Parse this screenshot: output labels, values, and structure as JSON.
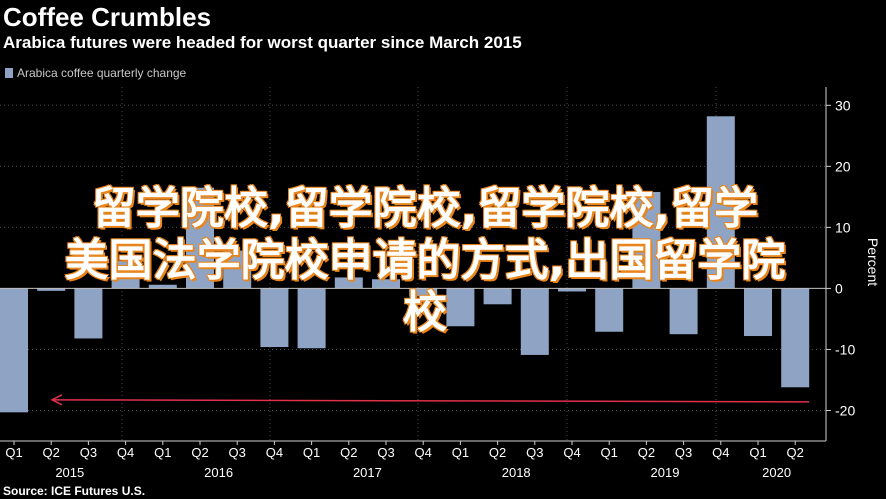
{
  "header": {
    "title": "Coffee Crumbles",
    "subtitle": "Arabica futures were headed for worst quarter since March 2015"
  },
  "legend": {
    "label": "Arabica coffee quarterly change"
  },
  "source": "Source: ICE Futures U.S.",
  "overlay": {
    "line1": "留学院校,留学院校,留学院校,留学",
    "line2": "美国法学院校申请的方式,出国留学院",
    "line3": "校"
  },
  "colors": {
    "background": "#000000",
    "bar": "#8fa4c4",
    "grid": "#4a4a4a",
    "arrow": "#e0304a",
    "text": "#ffffff"
  },
  "chart_data": {
    "type": "bar",
    "title": "Coffee Crumbles",
    "subtitle": "Arabica futures were headed for worst quarter since March 2015",
    "ylabel": "Percent",
    "ylim": [
      -25,
      33
    ],
    "yticks": [
      30,
      20,
      10,
      0,
      -10,
      -20
    ],
    "ytick_labels": [
      "30",
      "20",
      "10",
      "0",
      "-10",
      "-20"
    ],
    "grid": true,
    "legend_position": "top-left",
    "categories": [
      "Q1",
      "Q2",
      "Q3",
      "Q4",
      "Q1",
      "Q2",
      "Q3",
      "Q4",
      "Q1",
      "Q2",
      "Q3",
      "Q4",
      "Q1",
      "Q2",
      "Q3",
      "Q4",
      "Q1",
      "Q2",
      "Q3",
      "Q4",
      "Q1",
      "Q2"
    ],
    "years": [
      {
        "label": "2015",
        "start": 0,
        "end": 3
      },
      {
        "label": "2016",
        "start": 4,
        "end": 7
      },
      {
        "label": "2017",
        "start": 8,
        "end": 11
      },
      {
        "label": "2018",
        "start": 12,
        "end": 15
      },
      {
        "label": "2019",
        "start": 16,
        "end": 19
      },
      {
        "label": "2020",
        "start": 20,
        "end": 21
      }
    ],
    "series": [
      {
        "name": "Arabica coffee quarterly change",
        "values": [
          -20.3,
          -0.4,
          -8.2,
          4.5,
          0.6,
          16.5,
          6.2,
          -9.6,
          -9.8,
          1.8,
          1.5,
          -1.3,
          -6.2,
          -2.6,
          -10.9,
          -0.5,
          -7.1,
          15.8,
          -7.5,
          28.2,
          -7.8,
          -16.2
        ]
      }
    ],
    "annotations": [
      {
        "type": "arrow",
        "y": -18.5,
        "from_index": 21,
        "to_index": 0
      }
    ]
  }
}
